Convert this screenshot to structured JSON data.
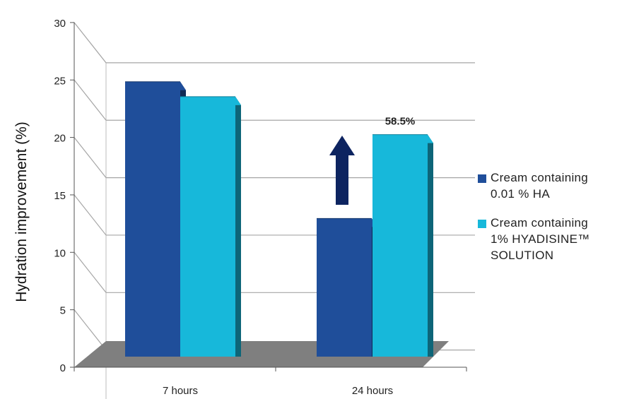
{
  "chart_data": {
    "type": "bar",
    "ylabel": "Hydration improvement (%)",
    "ylim": [
      0,
      30
    ],
    "yticks": [
      "0",
      "5",
      "10",
      "15",
      "20",
      "25",
      "30"
    ],
    "categories": [
      "7 hours",
      "24 hours"
    ],
    "series": [
      {
        "name": "Cream containing\n0.01 % HA",
        "color": "#1F4E9A",
        "values": [
          24.6,
          12.7
        ]
      },
      {
        "name": "Cream containing\n1% HYADISINE™\nSOLUTION",
        "color": "#17B8DA",
        "values": [
          23.3,
          20.0
        ]
      }
    ],
    "annotation": {
      "text": "58.5%",
      "category": "24 hours"
    },
    "grid": true,
    "legend_position": "right",
    "floor_color": "#7F7F7F",
    "arrow_color": "#0D2460"
  }
}
